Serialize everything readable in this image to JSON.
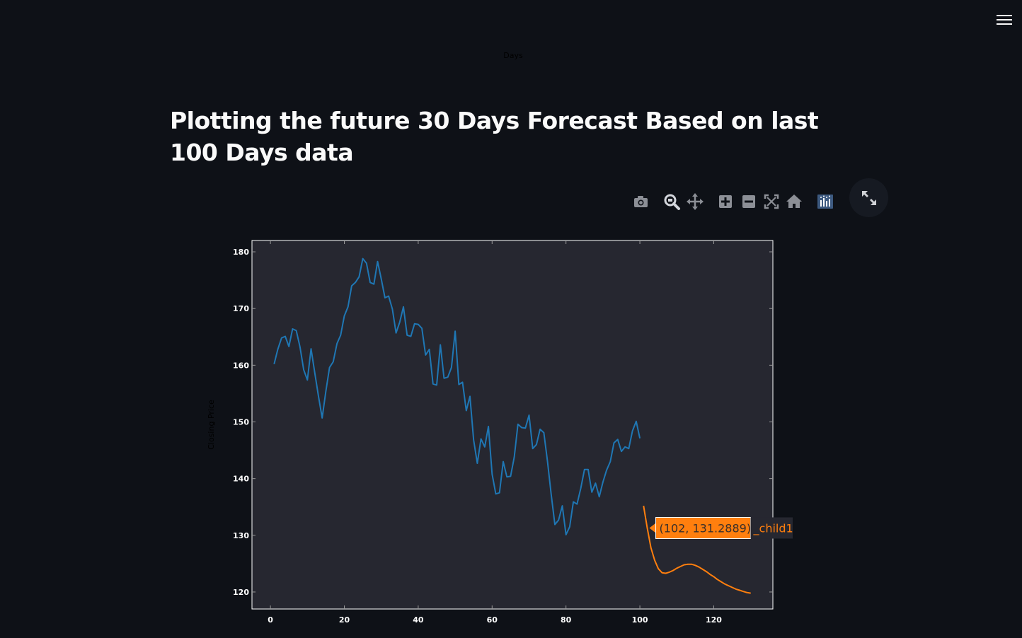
{
  "previous_chart": {
    "xlabel": "Days"
  },
  "page": {
    "title": "Plotting the future 30 Days Forecast Based on last 100 Days data"
  },
  "toolbar": {
    "icons": [
      "camera-icon",
      "zoom-icon",
      "pan-icon",
      "zoom-in-icon",
      "zoom-out-icon",
      "autoscale-icon",
      "home-icon",
      "chart-logo-icon"
    ]
  },
  "chart_data": {
    "type": "line",
    "title": "",
    "xlabel": "",
    "ylabel": "Closing Price",
    "xlim": [
      -5,
      136
    ],
    "ylim": [
      117,
      182
    ],
    "x_ticks": [
      0,
      20,
      40,
      60,
      80,
      100,
      120
    ],
    "y_ticks": [
      120,
      130,
      140,
      150,
      160,
      170,
      180
    ],
    "plot_bgcolor": "#262730",
    "series": [
      {
        "color": "#1f77b4",
        "x": [
          1,
          2,
          3,
          4,
          5,
          6,
          7,
          8,
          9,
          10,
          11,
          12,
          13,
          14,
          15,
          16,
          17,
          18,
          19,
          20,
          21,
          22,
          23,
          24,
          25,
          26,
          27,
          28,
          29,
          30,
          31,
          32,
          33,
          34,
          35,
          36,
          37,
          38,
          39,
          40,
          41,
          42,
          43,
          44,
          45,
          46,
          47,
          48,
          49,
          50,
          51,
          52,
          53,
          54,
          55,
          56,
          57,
          58,
          59,
          60,
          61,
          62,
          63,
          64,
          65,
          66,
          67,
          68,
          69,
          70,
          71,
          72,
          73,
          74,
          75,
          76,
          77,
          78,
          79,
          80,
          81,
          82,
          83,
          84,
          85,
          86,
          87,
          88,
          89,
          90,
          91,
          92,
          93,
          94,
          95,
          96,
          97,
          98,
          99,
          100
        ],
        "values": [
          160.2,
          162.8,
          164.8,
          165.1,
          163.3,
          166.4,
          166.1,
          163.2,
          159.2,
          157.4,
          162.9,
          158.7,
          154.5,
          150.7,
          155.4,
          159.6,
          160.6,
          163.8,
          165.3,
          168.7,
          170.3,
          174.0,
          174.6,
          175.6,
          178.8,
          178.0,
          174.6,
          174.3,
          178.3,
          175.2,
          171.9,
          172.2,
          169.9,
          165.7,
          167.6,
          170.3,
          165.3,
          165.1,
          167.3,
          167.2,
          166.5,
          161.8,
          162.8,
          156.7,
          156.5,
          163.6,
          157.7,
          157.9,
          159.6,
          166.0,
          156.6,
          157.0,
          152.0,
          154.5,
          146.8,
          142.7,
          147.0,
          145.6,
          149.2,
          140.8,
          137.3,
          137.5,
          143.0,
          140.3,
          140.4,
          143.8,
          149.6,
          149.0,
          148.9,
          151.2,
          145.3,
          146.0,
          148.7,
          148.1,
          143.0,
          137.2,
          131.9,
          132.7,
          135.2,
          130.1,
          131.5,
          135.9,
          135.5,
          138.3,
          141.6,
          141.6,
          137.6,
          139.2,
          136.8,
          139.4,
          141.5,
          143.0,
          146.3,
          146.9,
          144.8,
          145.6,
          145.3,
          148.4,
          150.1,
          147.1
        ]
      },
      {
        "name": "_child1",
        "color": "#ff7f0e",
        "x": [
          101,
          102,
          103,
          104,
          105,
          106,
          107,
          108,
          109,
          110,
          111,
          112,
          113,
          114,
          115,
          116,
          117,
          118,
          119,
          120,
          121,
          122,
          123,
          124,
          125,
          126,
          127,
          128,
          129,
          130
        ],
        "values": [
          135.2,
          131.3,
          127.8,
          125.6,
          124.1,
          123.4,
          123.3,
          123.5,
          123.8,
          124.2,
          124.5,
          124.8,
          124.9,
          124.9,
          124.7,
          124.4,
          124.0,
          123.6,
          123.1,
          122.7,
          122.2,
          121.8,
          121.4,
          121.1,
          120.8,
          120.5,
          120.3,
          120.1,
          119.9,
          119.8
        ]
      }
    ],
    "hover": {
      "x": 102,
      "y": 131.2889,
      "text": "(102, 131.2889)",
      "label": "_child1"
    }
  }
}
